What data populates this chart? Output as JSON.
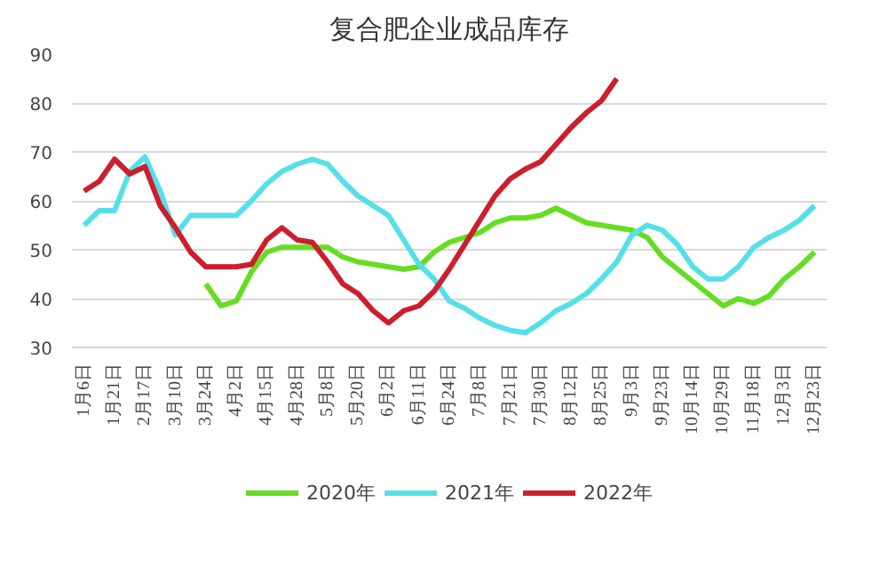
{
  "chart_data": {
    "type": "line",
    "title": "复合肥企业成品库存",
    "categories": [
      "1月6日",
      null,
      "1月21日",
      null,
      "2月17日",
      null,
      "3月10日",
      null,
      "3月24日",
      null,
      "4月2日",
      null,
      "4月15日",
      null,
      "4月28日",
      null,
      "5月8日",
      null,
      "5月20日",
      null,
      "6月2日",
      null,
      "6月11日",
      null,
      "6月24日",
      null,
      "7月8日",
      null,
      "7月21日",
      null,
      "7月30日",
      null,
      "8月12日",
      null,
      "8月25日",
      null,
      "9月3日",
      null,
      "9月23日",
      null,
      "10月14日",
      null,
      "10月29日",
      null,
      "11月18日",
      null,
      "12月3日",
      null,
      "12月23日"
    ],
    "series": [
      {
        "name": "2020年",
        "color": "#66dd22",
        "values": [
          null,
          null,
          null,
          null,
          null,
          null,
          null,
          null,
          43,
          38.5,
          39.5,
          45.5,
          49.5,
          50.5,
          50.5,
          50.5,
          50.5,
          48.5,
          47.5,
          47,
          46.5,
          46,
          46.5,
          49.5,
          51.5,
          52.5,
          53.5,
          55.5,
          56.5,
          56.5,
          57,
          58.5,
          57,
          55.5,
          55,
          54.5,
          54,
          52.5,
          48.5,
          46,
          43.5,
          41,
          38.5,
          40,
          39,
          40.5,
          44,
          46.5,
          49.5
        ]
      },
      {
        "name": "2021年",
        "color": "#55e0e8",
        "values": [
          55,
          58,
          58,
          66,
          69,
          62,
          53,
          57,
          57,
          57,
          57,
          60,
          63.5,
          66,
          67.5,
          68.5,
          67.5,
          64,
          61,
          59,
          57,
          52,
          47,
          44,
          39.5,
          38,
          36,
          34.5,
          33.5,
          33,
          35,
          37.5,
          39,
          41,
          44,
          47.5,
          53,
          55,
          54,
          51,
          46.5,
          44,
          44,
          46.5,
          50.5,
          52.5,
          54,
          56,
          59
        ]
      },
      {
        "name": "2022年",
        "color": "#cc1f2e",
        "values": [
          62,
          64,
          68.5,
          65.5,
          67,
          59,
          54.5,
          49.5,
          46.5,
          46.5,
          46.5,
          47,
          52,
          54.5,
          52,
          51.5,
          47.5,
          43,
          41,
          37.5,
          35,
          37.5,
          38.5,
          41.5,
          46,
          51,
          56,
          61,
          64.5,
          66.5,
          68,
          71.5,
          75,
          78,
          80.5,
          85,
          null,
          null,
          null,
          null,
          null,
          null,
          null,
          null,
          null,
          null,
          null,
          null,
          null
        ]
      }
    ],
    "ylim": [
      30,
      90
    ],
    "yticks": [
      30,
      40,
      50,
      60,
      70,
      80,
      90
    ],
    "grid": "y",
    "legend": "bottom",
    "marker": "none",
    "line_style": "solid"
  }
}
